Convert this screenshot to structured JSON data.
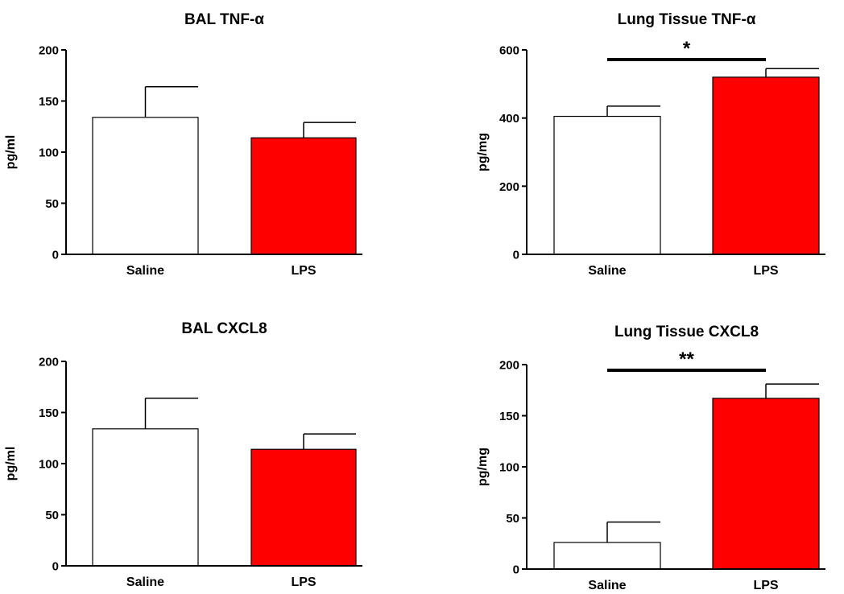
{
  "chart_data": [
    {
      "type": "bar",
      "title": "BAL TNF-α",
      "ylabel": "pg/ml",
      "xlabel": "",
      "categories": [
        "Saline",
        "LPS"
      ],
      "values": [
        134,
        114
      ],
      "errors": [
        30,
        15
      ],
      "ylim": [
        0,
        200
      ],
      "yticks": [
        0,
        50,
        100,
        150,
        200
      ],
      "bar_colors": [
        "#ffffff",
        "#ff0000"
      ],
      "grid": false,
      "significance": null
    },
    {
      "type": "bar",
      "title": "Lung Tissue TNF-α",
      "ylabel": "pg/mg",
      "xlabel": "",
      "categories": [
        "Saline",
        "LPS"
      ],
      "values": [
        405,
        520
      ],
      "errors": [
        30,
        25
      ],
      "ylim": [
        0,
        600
      ],
      "yticks": [
        0,
        200,
        400,
        600
      ],
      "bar_colors": [
        "#ffffff",
        "#ff0000"
      ],
      "grid": false,
      "significance": "*"
    },
    {
      "type": "bar",
      "title": "BAL CXCL8",
      "ylabel": "pg/ml",
      "xlabel": "",
      "categories": [
        "Saline",
        "LPS"
      ],
      "values": [
        134,
        114
      ],
      "errors": [
        30,
        15
      ],
      "ylim": [
        0,
        200
      ],
      "yticks": [
        0,
        50,
        100,
        150,
        200
      ],
      "bar_colors": [
        "#ffffff",
        "#ff0000"
      ],
      "grid": false,
      "significance": null
    },
    {
      "type": "bar",
      "title": "Lung Tissue CXCL8",
      "ylabel": "pg/mg",
      "xlabel": "",
      "categories": [
        "Saline",
        "LPS"
      ],
      "values": [
        26,
        167
      ],
      "errors": [
        20,
        14
      ],
      "ylim": [
        0,
        200
      ],
      "yticks": [
        0,
        50,
        100,
        150,
        200
      ],
      "bar_colors": [
        "#ffffff",
        "#ff0000"
      ],
      "grid": false,
      "significance": "**"
    }
  ]
}
